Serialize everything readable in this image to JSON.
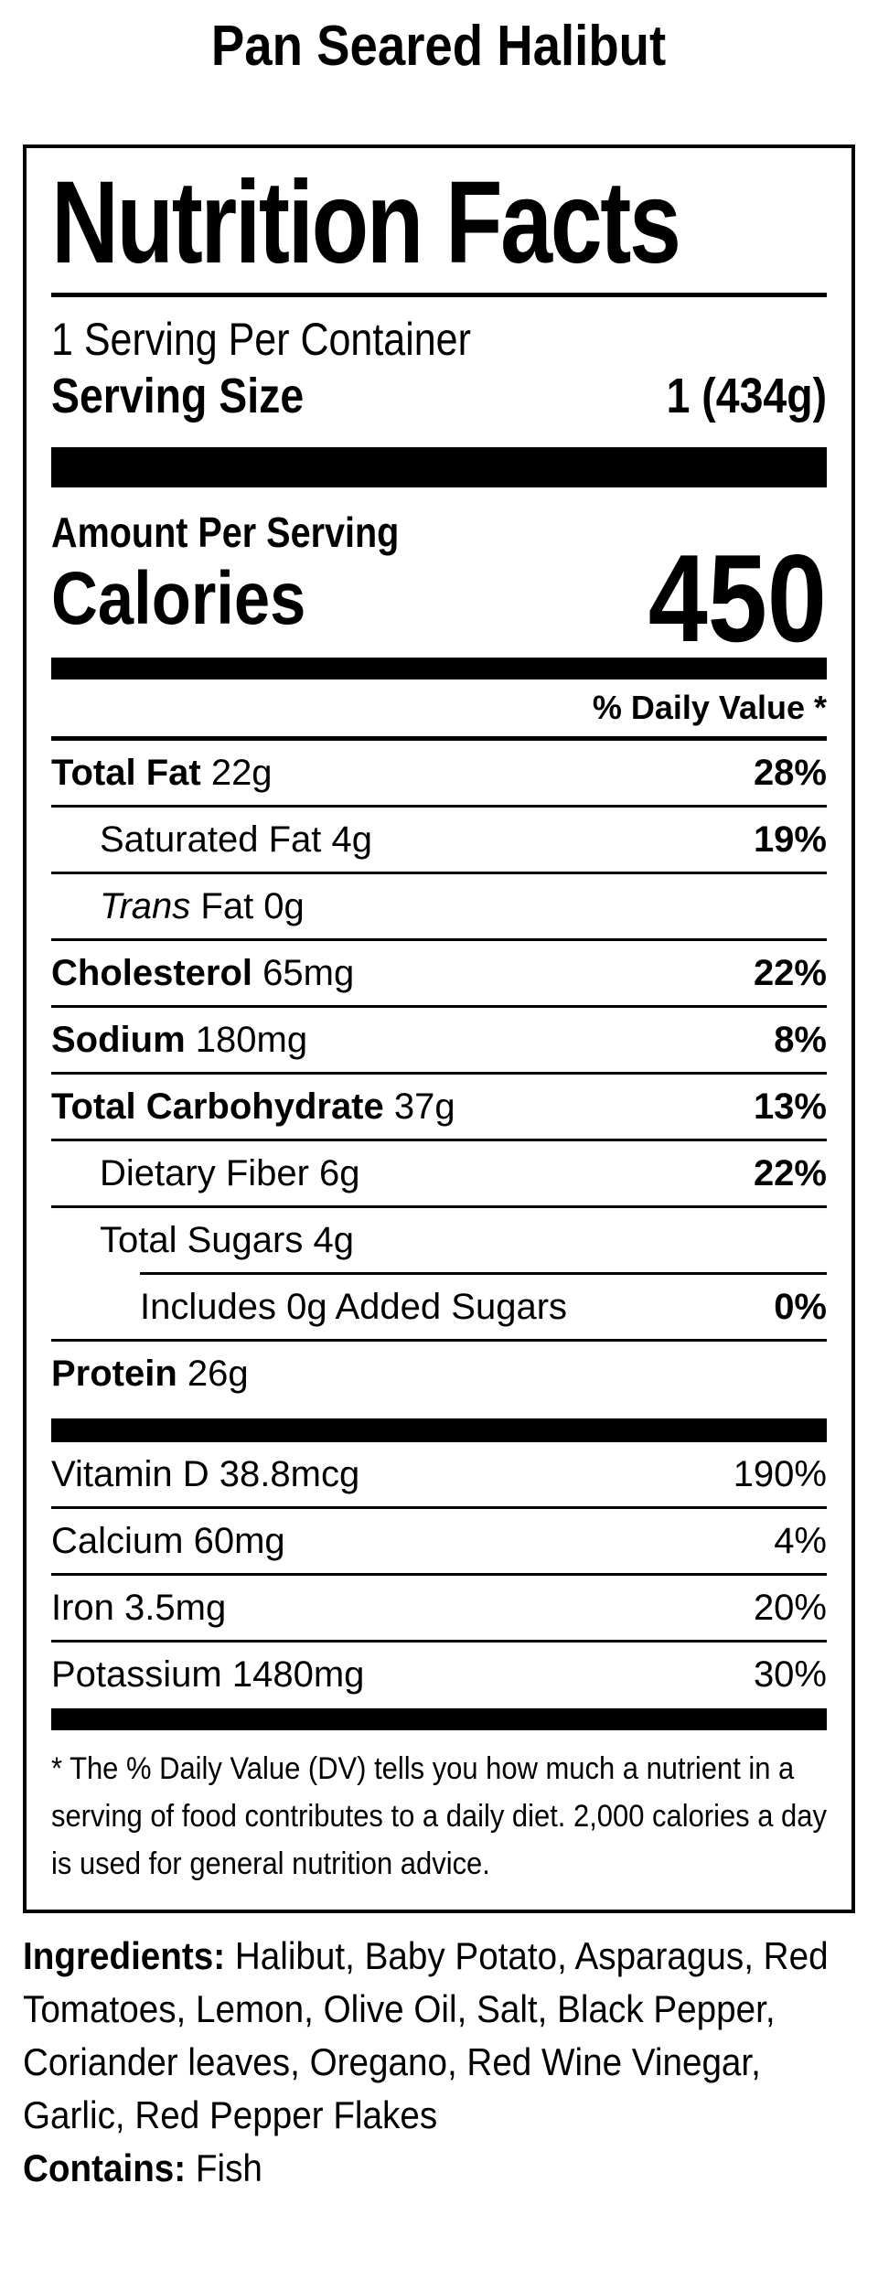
{
  "colors": {
    "text": "#000000",
    "background": "#ffffff"
  },
  "page": {
    "title": "Pan Seared Halibut"
  },
  "label": {
    "heading": "Nutrition Facts",
    "servings_per_container": "1 Serving Per Container",
    "serving_size_label": "Serving Size",
    "serving_size_value": "1 (434g)",
    "amount_per_serving": "Amount Per Serving",
    "calories_label": "Calories",
    "calories_value": "450",
    "daily_value_header": "% Daily Value *",
    "nutrients": [
      {
        "bold": "Total Fat",
        "italic": "",
        "rest": " 22g",
        "percent": "28%"
      },
      {
        "bold": "",
        "italic": "",
        "rest": "Saturated Fat 4g",
        "percent": "19%"
      },
      {
        "bold": "",
        "italic": "Trans",
        "rest": " Fat 0g",
        "percent": ""
      },
      {
        "bold": "Cholesterol",
        "italic": "",
        "rest": " 65mg",
        "percent": "22%"
      },
      {
        "bold": "Sodium",
        "italic": "",
        "rest": " 180mg",
        "percent": "8%"
      },
      {
        "bold": "Total Carbohydrate",
        "italic": "",
        "rest": " 37g",
        "percent": "13%"
      },
      {
        "bold": "",
        "italic": "",
        "rest": "Dietary Fiber 6g",
        "percent": "22%"
      },
      {
        "bold": "",
        "italic": "",
        "rest": "Total Sugars 4g",
        "percent": ""
      },
      {
        "bold": "",
        "italic": "",
        "rest": "Includes 0g Added Sugars",
        "percent": "0%"
      },
      {
        "bold": "Protein",
        "italic": "",
        "rest": " 26g",
        "percent": ""
      }
    ],
    "vitamins": [
      {
        "name": "Vitamin D 38.8mcg",
        "percent": "190%"
      },
      {
        "name": "Calcium 60mg",
        "percent": "4%"
      },
      {
        "name": "Iron 3.5mg",
        "percent": "20%"
      },
      {
        "name": "Potassium 1480mg",
        "percent": "30%"
      }
    ],
    "footnote": "* The % Daily Value (DV) tells you how much a nutrient in a serving of food contributes to a daily diet. 2,000 calories a day is used for general nutrition advice."
  },
  "ingredients": {
    "label": "Ingredients:",
    "text": " Halibut, Baby Potato, Asparagus, Red Tomatoes, Lemon, Olive Oil, Salt, Black Pepper, Coriander leaves, Oregano, Red Wine Vinegar, Garlic, Red Pepper Flakes",
    "contains_label": "Contains:",
    "contains_text": " Fish"
  }
}
